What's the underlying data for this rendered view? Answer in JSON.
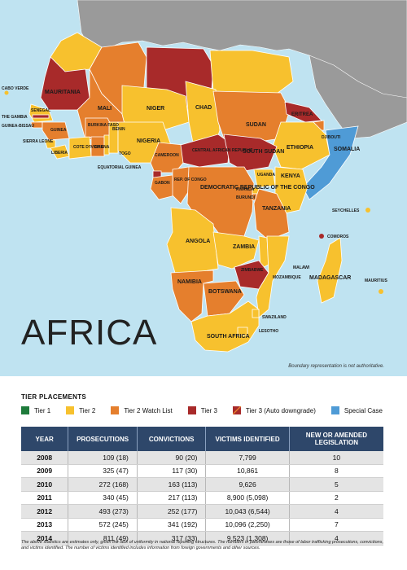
{
  "region_title": "AFRICA",
  "boundary_note": "Boundary representation is not authoritative.",
  "legend": {
    "title": "TIER PLACEMENTS",
    "items": [
      {
        "label": "Tier 1",
        "color": "#1e7b3b"
      },
      {
        "label": "Tier 2",
        "color": "#f7c12e"
      },
      {
        "label": "Tier 2 Watch List",
        "color": "#e57f2d"
      },
      {
        "label": "Tier 3",
        "color": "#a82a2a"
      },
      {
        "label": "Tier 3 (Auto downgrade)",
        "color": "#a82a2a"
      },
      {
        "label": "Special Case",
        "color": "#4f9bd6"
      }
    ]
  },
  "table": {
    "headers": [
      "YEAR",
      "PROSECUTIONS",
      "CONVICTIONS",
      "VICTIMS IDENTIFIED",
      "NEW OR AMENDED LEGISLATION"
    ],
    "rows": [
      [
        "2008",
        "109 (18)",
        "90 (20)",
        "7,799",
        "10"
      ],
      [
        "2009",
        "325 (47)",
        "117 (30)",
        "10,861",
        "8"
      ],
      [
        "2010",
        "272 (168)",
        "163 (113)",
        "9,626",
        "5"
      ],
      [
        "2011",
        "340 (45)",
        "217 (113)",
        "8,900 (5,098)",
        "2"
      ],
      [
        "2012",
        "493 (273)",
        "252 (177)",
        "10,043 (6,544)",
        "4"
      ],
      [
        "2013",
        "572 (245)",
        "341 (192)",
        "10,096 (2,250)",
        "7"
      ],
      [
        "2014",
        "811 (49)",
        "317 (33)",
        "9,523 (1,308)",
        "4"
      ]
    ]
  },
  "footnote": "The above statistics are estimates only, given the lack of uniformity in national reporting structures. The numbers in parentheses are those of labor trafficking prosecutions, convictions, and victims identified. The number of victims identified includes information from foreign governments and other sources.",
  "countries": [
    {
      "name": "CABO VERDE",
      "tier": "Tier 2"
    },
    {
      "name": "MAURITANIA",
      "tier": "Tier 3"
    },
    {
      "name": "MALI",
      "tier": "Tier 2 Watch List"
    },
    {
      "name": "NIGER",
      "tier": "Tier 2"
    },
    {
      "name": "CHAD",
      "tier": "Tier 2"
    },
    {
      "name": "SUDAN",
      "tier": "Tier 2 Watch List"
    },
    {
      "name": "ERITREA",
      "tier": "Tier 3"
    },
    {
      "name": "DJIBOUTI",
      "tier": "Tier 2 Watch List"
    },
    {
      "name": "SENEGAL",
      "tier": "Tier 2"
    },
    {
      "name": "THE GAMBIA",
      "tier": "Tier 3"
    },
    {
      "name": "GUINEA-BISSAU",
      "tier": "Tier 2 Watch List"
    },
    {
      "name": "GUINEA",
      "tier": "Tier 2 Watch List"
    },
    {
      "name": "BURKINA FASO",
      "tier": "Tier 2 Watch List"
    },
    {
      "name": "BENIN",
      "tier": "Tier 2"
    },
    {
      "name": "NIGERIA",
      "tier": "Tier 2"
    },
    {
      "name": "ETHIOPIA",
      "tier": "Tier 2"
    },
    {
      "name": "SOMALIA",
      "tier": "Special Case"
    },
    {
      "name": "SIERRA LEONE",
      "tier": "Tier 2"
    },
    {
      "name": "LIBERIA",
      "tier": "Tier 2"
    },
    {
      "name": "COTE D'IVOIRE",
      "tier": "Tier 2"
    },
    {
      "name": "GHANA",
      "tier": "Tier 2 Watch List"
    },
    {
      "name": "TOGO",
      "tier": "Tier 2"
    },
    {
      "name": "CAMEROON",
      "tier": "Tier 2 Watch List"
    },
    {
      "name": "CENTRAL AFRICAN REPUBLIC",
      "tier": "Tier 3"
    },
    {
      "name": "SOUTH SUDAN",
      "tier": "Tier 3"
    },
    {
      "name": "EQUATORIAL GUINEA",
      "tier": "Tier 3"
    },
    {
      "name": "GABON",
      "tier": "Tier 2 Watch List"
    },
    {
      "name": "REP. OF CONGO",
      "tier": "Tier 2 Watch List"
    },
    {
      "name": "DEMOCRATIC REPUBLIC OF THE CONGO",
      "tier": "Tier 2 Watch List"
    },
    {
      "name": "UGANDA",
      "tier": "Tier 2"
    },
    {
      "name": "KENYA",
      "tier": "Tier 2"
    },
    {
      "name": "RWANDA",
      "tier": "Tier 2"
    },
    {
      "name": "BURUNDI",
      "tier": "Tier 2 Watch List"
    },
    {
      "name": "TANZANIA",
      "tier": "Tier 2 Watch List"
    },
    {
      "name": "SEYCHELLES",
      "tier": "Tier 2"
    },
    {
      "name": "ANGOLA",
      "tier": "Tier 2"
    },
    {
      "name": "ZAMBIA",
      "tier": "Tier 2"
    },
    {
      "name": "COMOROS",
      "tier": "Tier 3"
    },
    {
      "name": "MALAWI",
      "tier": "Tier 2"
    },
    {
      "name": "ZIMBABWE",
      "tier": "Tier 3"
    },
    {
      "name": "MOZAMBIQUE",
      "tier": "Tier 2"
    },
    {
      "name": "MADAGASCAR",
      "tier": "Tier 2"
    },
    {
      "name": "MAURITIUS",
      "tier": "Tier 2"
    },
    {
      "name": "NAMIBIA",
      "tier": "Tier 2 Watch List"
    },
    {
      "name": "BOTSWANA",
      "tier": "Tier 2 Watch List"
    },
    {
      "name": "SWAZILAND",
      "tier": "Tier 2"
    },
    {
      "name": "LESOTHO",
      "tier": "Tier 2"
    },
    {
      "name": "SOUTH AFRICA",
      "tier": "Tier 2"
    }
  ]
}
